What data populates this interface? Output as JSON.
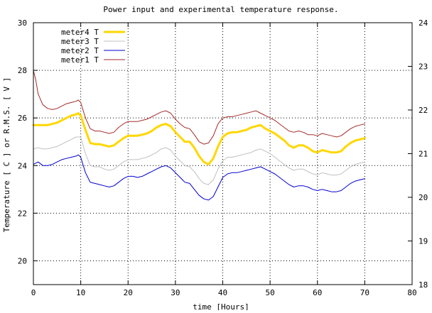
{
  "chart_data": {
    "type": "line",
    "title": "Power input and experimental temperature response.",
    "xlabel": "time [Hours]",
    "ylabel": "Temperature [ C ]    or    R.M.S. [ V ]",
    "y2label": "",
    "xlim": [
      0,
      80
    ],
    "ylim": [
      19,
      30
    ],
    "y2lim": [
      18,
      24
    ],
    "xticks": [
      0,
      10,
      20,
      30,
      40,
      50,
      60,
      70,
      80
    ],
    "yticks": [
      20,
      22,
      24,
      26,
      28,
      30
    ],
    "y2ticks": [
      18,
      19,
      20,
      21,
      22,
      23,
      24
    ],
    "grid": true,
    "legend_position": "top-left",
    "series": [
      {
        "name": "meter4 T",
        "color": "#ffd700",
        "width": 3,
        "x": [
          0,
          1,
          2,
          3,
          4,
          5,
          6,
          7,
          8,
          9,
          9.5,
          10,
          11,
          12,
          13,
          14,
          15,
          16,
          17,
          18,
          19,
          20,
          21,
          22,
          23,
          24,
          25,
          26,
          27,
          28,
          29,
          30,
          31,
          32,
          33,
          34,
          35,
          36,
          37,
          38,
          39,
          40,
          41,
          42,
          43,
          44,
          45,
          46,
          47,
          48,
          49,
          50,
          51,
          52,
          53,
          54,
          55,
          56,
          57,
          58,
          59,
          60,
          61,
          62,
          63,
          64,
          65,
          66,
          67,
          68,
          69,
          70
        ],
        "y": [
          25.7,
          25.7,
          25.7,
          25.7,
          25.75,
          25.8,
          25.9,
          26.0,
          26.1,
          26.15,
          26.2,
          26.1,
          25.5,
          24.95,
          24.9,
          24.9,
          24.85,
          24.8,
          24.85,
          25.0,
          25.15,
          25.25,
          25.25,
          25.25,
          25.3,
          25.35,
          25.45,
          25.6,
          25.7,
          25.75,
          25.65,
          25.4,
          25.2,
          25.0,
          25.0,
          24.75,
          24.4,
          24.15,
          24.05,
          24.3,
          24.8,
          25.2,
          25.35,
          25.4,
          25.4,
          25.45,
          25.5,
          25.6,
          25.65,
          25.7,
          25.55,
          25.45,
          25.35,
          25.2,
          25.05,
          24.85,
          24.75,
          24.85,
          24.85,
          24.75,
          24.6,
          24.55,
          24.65,
          24.6,
          24.55,
          24.55,
          24.6,
          24.8,
          24.95,
          25.05,
          25.1,
          25.15
        ]
      },
      {
        "name": "meter3 T",
        "color": "#c0c0c0",
        "width": 1,
        "x": [
          0,
          1,
          2,
          3,
          4,
          5,
          6,
          7,
          8,
          9,
          9.5,
          10,
          11,
          12,
          13,
          14,
          15,
          16,
          17,
          18,
          19,
          20,
          21,
          22,
          23,
          24,
          25,
          26,
          27,
          28,
          29,
          30,
          31,
          32,
          33,
          34,
          35,
          36,
          37,
          38,
          39,
          40,
          41,
          42,
          43,
          44,
          45,
          46,
          47,
          48,
          49,
          50,
          51,
          52,
          53,
          54,
          55,
          56,
          57,
          58,
          59,
          60,
          61,
          62,
          63,
          64,
          65,
          66,
          67,
          68,
          69,
          70
        ],
        "y": [
          24.7,
          24.75,
          24.7,
          24.7,
          24.75,
          24.8,
          24.9,
          25.0,
          25.1,
          25.2,
          25.2,
          25.2,
          24.5,
          24.0,
          23.95,
          23.95,
          23.85,
          23.8,
          23.85,
          24.0,
          24.15,
          24.25,
          24.25,
          24.25,
          24.3,
          24.35,
          24.45,
          24.55,
          24.7,
          24.75,
          24.65,
          24.4,
          24.2,
          24.0,
          23.95,
          23.75,
          23.45,
          23.25,
          23.2,
          23.4,
          23.85,
          24.2,
          24.35,
          24.35,
          24.4,
          24.45,
          24.5,
          24.55,
          24.65,
          24.7,
          24.6,
          24.5,
          24.35,
          24.2,
          24.05,
          23.9,
          23.8,
          23.85,
          23.85,
          23.75,
          23.65,
          23.6,
          23.7,
          23.65,
          23.6,
          23.6,
          23.65,
          23.8,
          23.95,
          24.05,
          24.1,
          24.15
        ]
      },
      {
        "name": "meter2 T",
        "color": "#0000cd",
        "width": 1,
        "x": [
          0,
          1,
          2,
          3,
          4,
          5,
          6,
          7,
          8,
          9,
          9.5,
          10,
          11,
          12,
          13,
          14,
          15,
          16,
          17,
          18,
          19,
          20,
          21,
          22,
          23,
          24,
          25,
          26,
          27,
          28,
          29,
          30,
          31,
          32,
          33,
          34,
          35,
          36,
          37,
          38,
          39,
          40,
          41,
          42,
          43,
          44,
          45,
          46,
          47,
          48,
          49,
          50,
          51,
          52,
          53,
          54,
          55,
          56,
          57,
          58,
          59,
          60,
          61,
          62,
          63,
          64,
          65,
          66,
          67,
          68,
          69,
          70
        ],
        "y": [
          24.05,
          24.15,
          24.0,
          24.0,
          24.05,
          24.15,
          24.25,
          24.3,
          24.35,
          24.4,
          24.45,
          24.35,
          23.7,
          23.3,
          23.25,
          23.2,
          23.15,
          23.1,
          23.15,
          23.3,
          23.45,
          23.55,
          23.55,
          23.5,
          23.55,
          23.65,
          23.75,
          23.85,
          23.95,
          24.0,
          23.9,
          23.7,
          23.5,
          23.3,
          23.25,
          23.0,
          22.75,
          22.6,
          22.55,
          22.7,
          23.1,
          23.5,
          23.65,
          23.7,
          23.7,
          23.75,
          23.8,
          23.85,
          23.9,
          23.95,
          23.85,
          23.75,
          23.65,
          23.5,
          23.35,
          23.2,
          23.1,
          23.15,
          23.15,
          23.1,
          23.0,
          22.95,
          23.0,
          22.95,
          22.9,
          22.9,
          22.95,
          23.1,
          23.25,
          23.35,
          23.4,
          23.45
        ]
      },
      {
        "name": "meter1 T",
        "color": "#a52a2a",
        "width": 1,
        "x": [
          0,
          0.5,
          1,
          2,
          3,
          4,
          5,
          6,
          7,
          8,
          9,
          9.5,
          10,
          11,
          12,
          13,
          14,
          15,
          16,
          17,
          18,
          19,
          20,
          21,
          22,
          23,
          24,
          25,
          26,
          27,
          28,
          29,
          30,
          31,
          32,
          33,
          34,
          35,
          36,
          37,
          38,
          39,
          40,
          41,
          42,
          43,
          44,
          45,
          46,
          47,
          48,
          49,
          50,
          51,
          52,
          53,
          54,
          55,
          56,
          57,
          58,
          59,
          60,
          61,
          62,
          63,
          64,
          65,
          66,
          67,
          68,
          69,
          70
        ],
        "y": [
          28.0,
          27.6,
          27.0,
          26.55,
          26.4,
          26.35,
          26.4,
          26.5,
          26.6,
          26.65,
          26.7,
          26.75,
          26.65,
          26.0,
          25.55,
          25.45,
          25.45,
          25.4,
          25.35,
          25.4,
          25.6,
          25.75,
          25.85,
          25.85,
          25.85,
          25.9,
          25.95,
          26.05,
          26.15,
          26.25,
          26.3,
          26.2,
          25.95,
          25.75,
          25.6,
          25.55,
          25.3,
          25.0,
          24.9,
          24.95,
          25.25,
          25.75,
          26.0,
          26.05,
          26.05,
          26.1,
          26.15,
          26.2,
          26.25,
          26.3,
          26.2,
          26.1,
          26.0,
          25.9,
          25.75,
          25.6,
          25.45,
          25.4,
          25.45,
          25.4,
          25.3,
          25.3,
          25.25,
          25.35,
          25.3,
          25.25,
          25.2,
          25.25,
          25.4,
          25.55,
          25.65,
          25.7,
          25.75
        ]
      }
    ]
  }
}
